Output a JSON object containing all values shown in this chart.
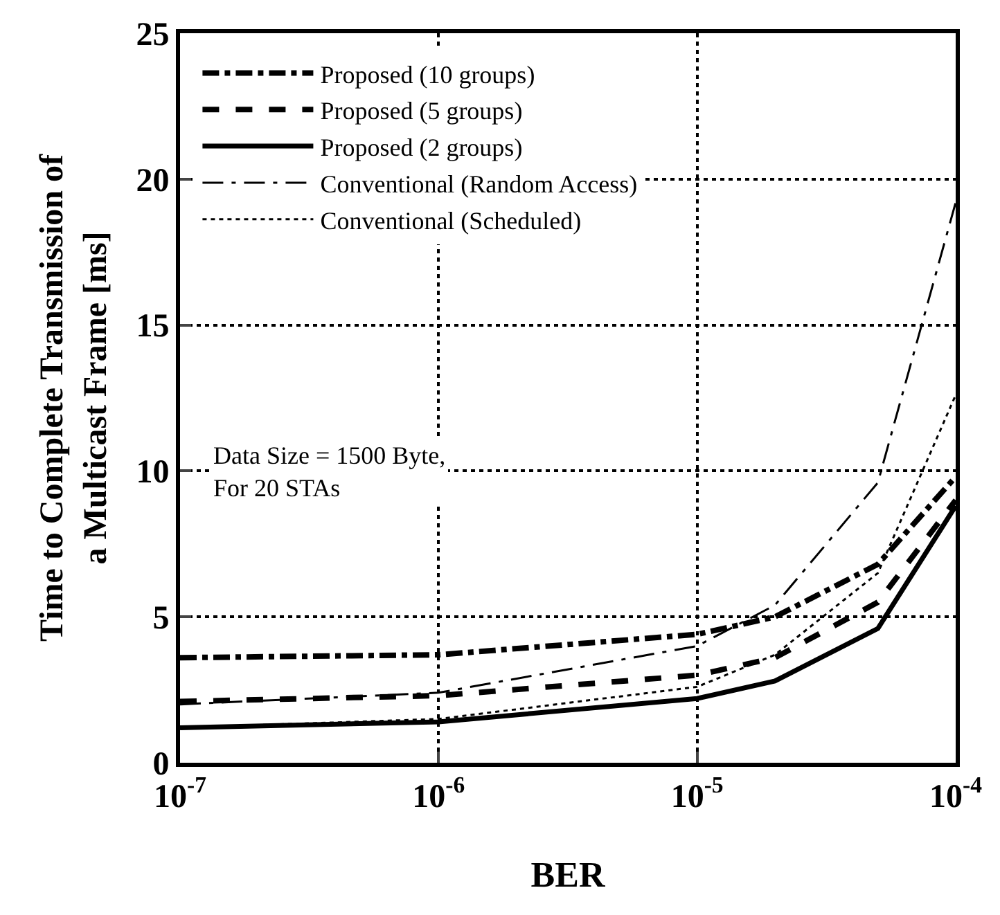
{
  "chart_data": {
    "type": "line",
    "xlabel": "BER",
    "ylabel": "Time to Complete Transmission of\na Multicast Frame [ms]",
    "log": "x",
    "grid": true,
    "legend": "top left",
    "xlim": [
      1e-07,
      0.0001
    ],
    "xticks": [
      {
        "value": 1e-07,
        "label": "10$^{-7}$"
      },
      {
        "value": 1e-06,
        "label": "10$^{-6}$"
      },
      {
        "value": 1e-05,
        "label": "10$^{-5}$"
      },
      {
        "value": 0.0001,
        "label": "10$^{-4}$"
      }
    ],
    "ylim": [
      0,
      25
    ],
    "yticks": [
      0,
      5,
      10,
      15,
      20,
      25
    ],
    "x": [
      1e-07,
      1e-06,
      1e-05,
      2e-05,
      5e-05,
      0.0001
    ],
    "series": [
      {
        "name": "Proposed (10 groups)",
        "color": "#000000",
        "line_style": "dashdot",
        "values": [
          3.6,
          3.7,
          4.4,
          5.0,
          6.8,
          9.8
        ]
      },
      {
        "name": "Proposed (5 groups)",
        "color": "#000000",
        "line_style": "dashed",
        "values": [
          2.1,
          2.3,
          3.0,
          3.6,
          5.5,
          9.0
        ]
      },
      {
        "name": "Proposed (2 groups)",
        "color": "#000000",
        "line_style": "solid",
        "values": [
          1.2,
          1.4,
          2.2,
          2.8,
          4.6,
          8.8
        ]
      },
      {
        "name": "Conventional (Random Access)",
        "color": "#000000",
        "line_style": "longdashdot",
        "values": [
          2.0,
          2.4,
          4.0,
          5.4,
          9.6,
          19.2
        ]
      },
      {
        "name": "Conventional (Scheduled)",
        "color": "#000000",
        "line_style": "dotted",
        "values": [
          1.2,
          1.5,
          2.6,
          3.7,
          6.5,
          12.6
        ]
      }
    ],
    "annotations": [
      "Data Size = 1500 Byte,\nFor 20 STAs"
    ]
  }
}
